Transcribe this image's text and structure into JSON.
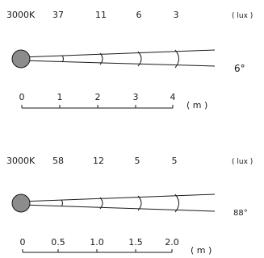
{
  "panels": [
    {
      "color_temp": "3000K",
      "lux_values": [
        "37",
        "11",
        "6",
        "3"
      ],
      "lux_unit": "( lux )",
      "beam_angle": "6°",
      "distance_ticks": [
        "0",
        "1",
        "2",
        "3",
        "4"
      ],
      "distance_unit": "( m )"
    },
    {
      "color_temp": "3000K",
      "lux_values": [
        "58",
        "12",
        "5",
        "5"
      ],
      "lux_unit": "( lux )",
      "beam_angle": "88°",
      "distance_ticks": [
        "0",
        "0.5",
        "1.0",
        "1.5",
        "2.0"
      ],
      "distance_unit": "( m )"
    }
  ],
  "colors": {
    "lamp_fill": "#8c8c8c",
    "line": "#1a1a1a",
    "background": "#ffffff"
  }
}
